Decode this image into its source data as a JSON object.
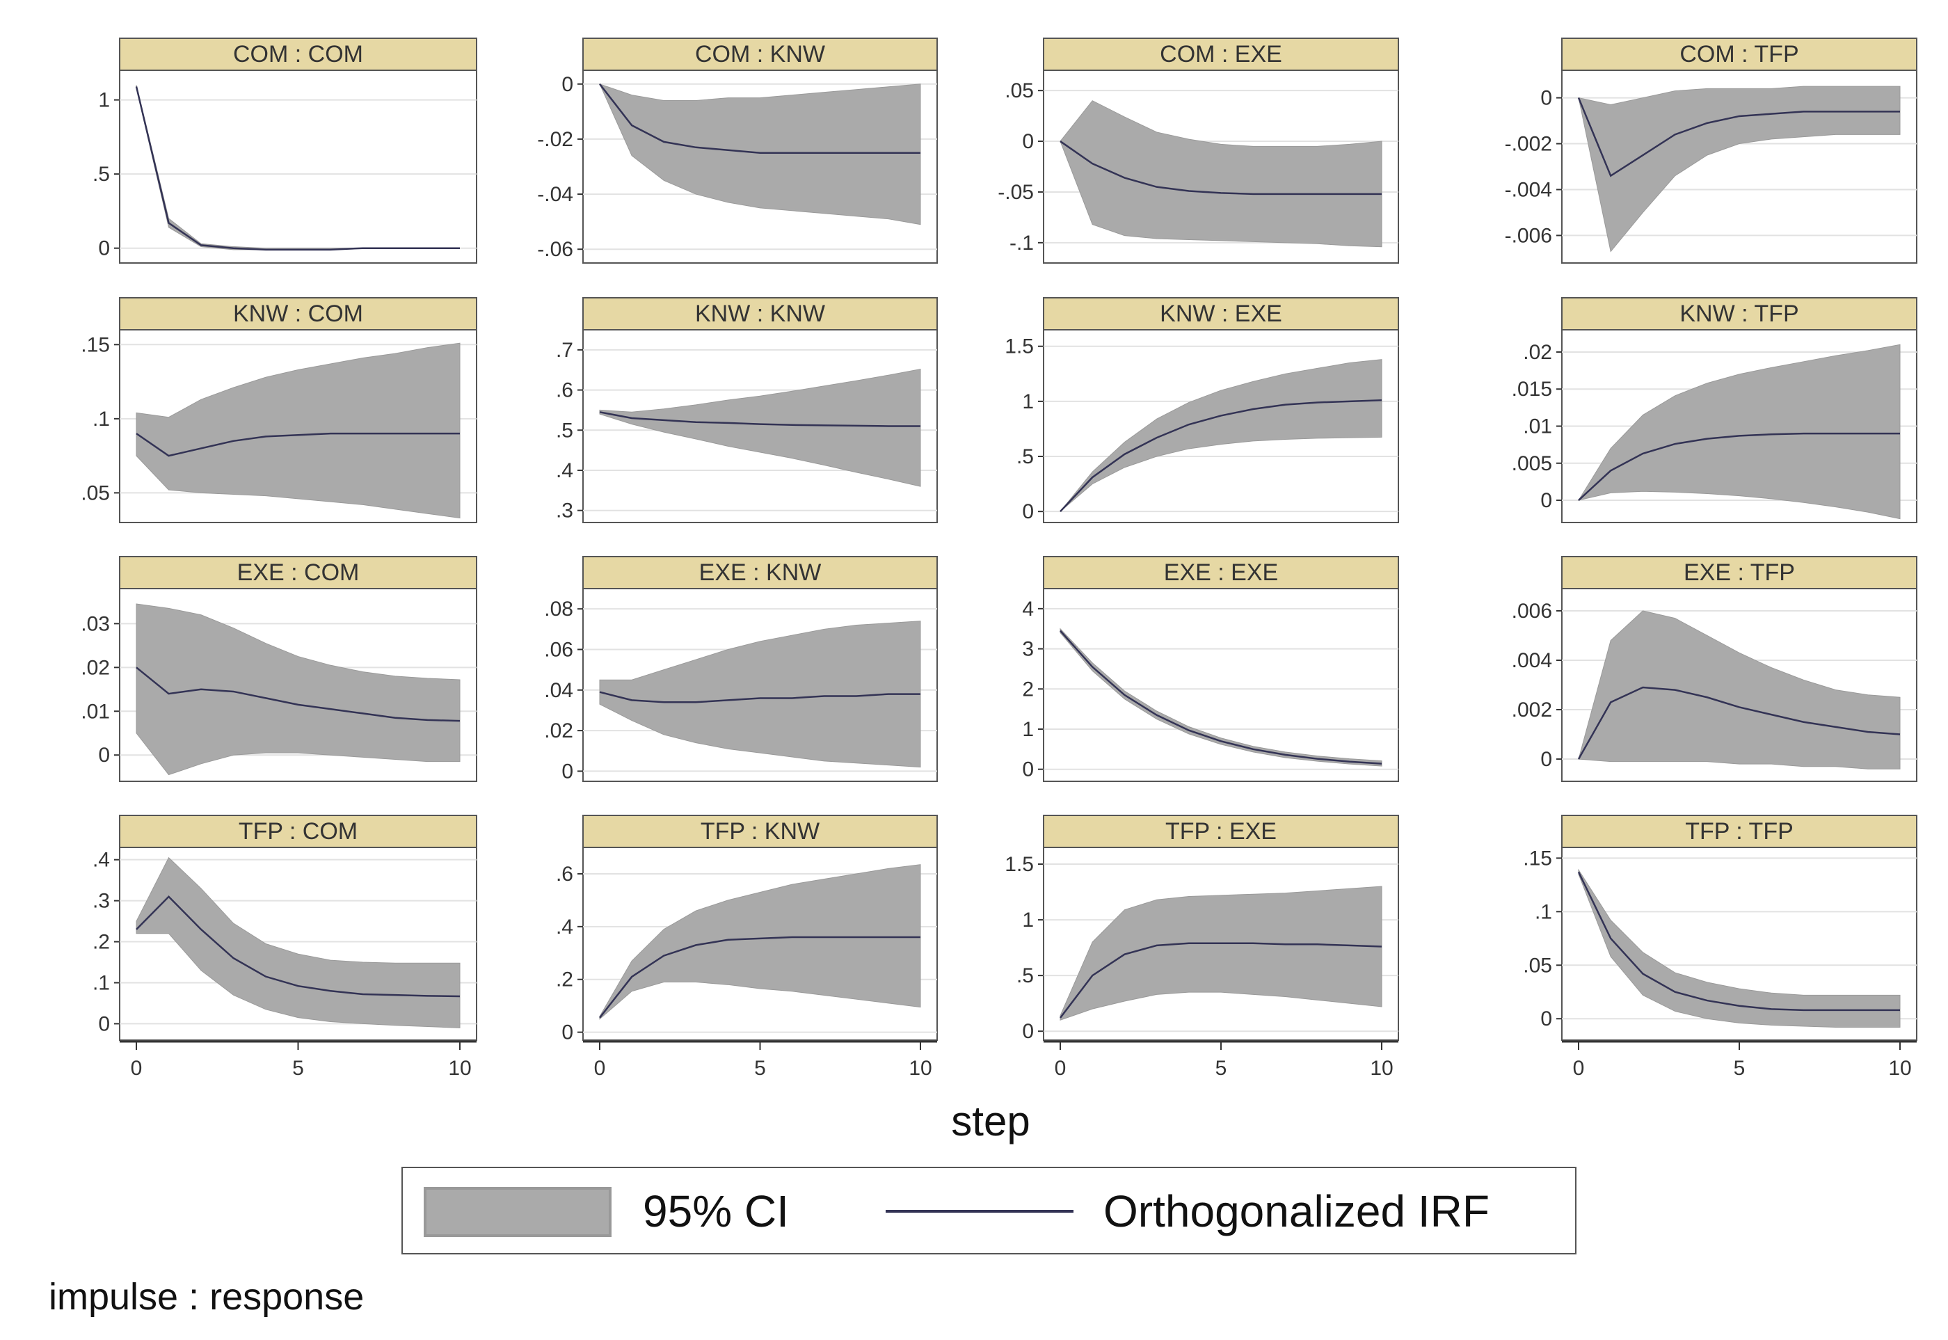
{
  "chart_data": {
    "type": "line",
    "title": "",
    "xlabel": "step",
    "note": "impulse : response",
    "legend": {
      "ci_label": "95% CI",
      "irf_label": "Orthogonalized IRF",
      "placement": "bottom"
    },
    "colors": {
      "strip": "#e6d8a4",
      "band": "#aaaaaa",
      "line": "#333355",
      "grid": "#e2e2e2",
      "axis": "#333333"
    },
    "x": [
      0,
      1,
      2,
      3,
      4,
      5,
      6,
      7,
      8,
      9,
      10
    ],
    "xlim": [
      0,
      10
    ],
    "xticks": [
      "0",
      "5",
      "10"
    ],
    "panels": [
      {
        "title": "COM : COM",
        "ylim": [
          -0.1,
          1.2
        ],
        "yticks": [
          0,
          0.5,
          1
        ],
        "ytick_labels": [
          "0",
          ".5",
          "1"
        ],
        "irf": [
          1.09,
          0.17,
          0.02,
          0.0,
          -0.01,
          -0.01,
          -0.01,
          0.0,
          0.0,
          0.0,
          0.0
        ],
        "lower": [
          1.08,
          0.14,
          0.01,
          -0.01,
          -0.01,
          -0.01,
          -0.01,
          0.0,
          0.0,
          0.0,
          0.0
        ],
        "upper": [
          1.1,
          0.2,
          0.03,
          0.01,
          0.0,
          0.0,
          0.0,
          0.0,
          0.0,
          0.0,
          0.0
        ]
      },
      {
        "title": "COM : KNW",
        "ylim": [
          -0.065,
          0.005
        ],
        "yticks": [
          0,
          -0.02,
          -0.04,
          -0.06
        ],
        "ytick_labels": [
          "0",
          "-.02",
          "-.04",
          "-.06"
        ],
        "irf": [
          0.0,
          -0.015,
          -0.021,
          -0.023,
          -0.024,
          -0.025,
          -0.025,
          -0.025,
          -0.025,
          -0.025,
          -0.025
        ],
        "lower": [
          0.0,
          -0.026,
          -0.035,
          -0.04,
          -0.043,
          -0.045,
          -0.046,
          -0.047,
          -0.048,
          -0.049,
          -0.051
        ],
        "upper": [
          0.0,
          -0.004,
          -0.006,
          -0.006,
          -0.005,
          -0.005,
          -0.004,
          -0.003,
          -0.002,
          -0.001,
          0.0
        ]
      },
      {
        "title": "COM : EXE",
        "ylim": [
          -0.12,
          0.07
        ],
        "yticks": [
          0.05,
          0,
          -0.05,
          -0.1
        ],
        "ytick_labels": [
          ".05",
          "0",
          "-.05",
          "-.1"
        ],
        "irf": [
          0.0,
          -0.022,
          -0.036,
          -0.045,
          -0.049,
          -0.051,
          -0.052,
          -0.052,
          -0.052,
          -0.052,
          -0.052
        ],
        "lower": [
          0.0,
          -0.082,
          -0.093,
          -0.096,
          -0.097,
          -0.098,
          -0.099,
          -0.1,
          -0.101,
          -0.103,
          -0.104
        ],
        "upper": [
          0.0,
          0.04,
          0.024,
          0.009,
          0.002,
          -0.003,
          -0.005,
          -0.005,
          -0.005,
          -0.003,
          0.0
        ]
      },
      {
        "title": "COM : TFP",
        "ylim": [
          -0.0072,
          0.0012
        ],
        "yticks": [
          0,
          -0.002,
          -0.004,
          -0.006
        ],
        "ytick_labels": [
          "0",
          "-.002",
          "-.004",
          "-.006"
        ],
        "irf": [
          0.0,
          -0.0034,
          -0.0025,
          -0.0016,
          -0.0011,
          -0.0008,
          -0.0007,
          -0.0006,
          -0.0006,
          -0.0006,
          -0.0006
        ],
        "lower": [
          0.0,
          -0.0067,
          -0.005,
          -0.0034,
          -0.0025,
          -0.002,
          -0.0018,
          -0.0017,
          -0.0016,
          -0.0016,
          -0.0016
        ],
        "upper": [
          0.0,
          -0.0003,
          0.0,
          0.0003,
          0.0004,
          0.0004,
          0.0004,
          0.0005,
          0.0005,
          0.0005,
          0.0005
        ]
      },
      {
        "title": "KNW : COM",
        "ylim": [
          0.03,
          0.16
        ],
        "yticks": [
          0.15,
          0.1,
          0.05
        ],
        "ytick_labels": [
          ".15",
          ".1",
          ".05"
        ],
        "irf": [
          0.09,
          0.075,
          0.08,
          0.085,
          0.088,
          0.089,
          0.09,
          0.09,
          0.09,
          0.09,
          0.09
        ],
        "lower": [
          0.075,
          0.052,
          0.05,
          0.049,
          0.048,
          0.046,
          0.044,
          0.042,
          0.039,
          0.036,
          0.033
        ],
        "upper": [
          0.104,
          0.101,
          0.113,
          0.121,
          0.128,
          0.133,
          0.137,
          0.141,
          0.144,
          0.148,
          0.151
        ]
      },
      {
        "title": "KNW : KNW",
        "ylim": [
          0.27,
          0.75
        ],
        "yticks": [
          0.7,
          0.6,
          0.5,
          0.4,
          0.3
        ],
        "ytick_labels": [
          ".7",
          ".6",
          ".5",
          ".4",
          ".3"
        ],
        "irf": [
          0.545,
          0.53,
          0.525,
          0.52,
          0.518,
          0.515,
          0.513,
          0.512,
          0.511,
          0.51,
          0.51
        ],
        "lower": [
          0.54,
          0.515,
          0.495,
          0.478,
          0.46,
          0.445,
          0.43,
          0.413,
          0.395,
          0.378,
          0.36
        ],
        "upper": [
          0.55,
          0.545,
          0.553,
          0.563,
          0.575,
          0.585,
          0.597,
          0.61,
          0.623,
          0.637,
          0.652
        ]
      },
      {
        "title": "KNW : EXE",
        "ylim": [
          -0.1,
          1.65
        ],
        "yticks": [
          1.5,
          1,
          0.5,
          0
        ],
        "ytick_labels": [
          "1.5",
          "1",
          ".5",
          "0"
        ],
        "irf": [
          0.0,
          0.31,
          0.52,
          0.67,
          0.79,
          0.87,
          0.93,
          0.97,
          0.99,
          1.0,
          1.01
        ],
        "lower": [
          0.0,
          0.25,
          0.4,
          0.5,
          0.57,
          0.61,
          0.64,
          0.655,
          0.665,
          0.67,
          0.675
        ],
        "upper": [
          0.0,
          0.36,
          0.63,
          0.84,
          0.99,
          1.1,
          1.18,
          1.25,
          1.3,
          1.35,
          1.38
        ]
      },
      {
        "title": "KNW : TFP",
        "ylim": [
          -0.003,
          0.023
        ],
        "yticks": [
          0.02,
          0.015,
          0.01,
          0.005,
          0
        ],
        "ytick_labels": [
          ".02",
          ".015",
          ".01",
          ".005",
          "0"
        ],
        "irf": [
          0.0,
          0.004,
          0.0063,
          0.0076,
          0.0083,
          0.0087,
          0.0089,
          0.009,
          0.009,
          0.009,
          0.009
        ],
        "lower": [
          0.0,
          0.001,
          0.0012,
          0.0011,
          0.0009,
          0.0006,
          0.0002,
          -0.0003,
          -0.0009,
          -0.0016,
          -0.0025
        ],
        "upper": [
          0.0,
          0.007,
          0.0115,
          0.0141,
          0.0158,
          0.017,
          0.0179,
          0.0187,
          0.0195,
          0.0202,
          0.021
        ]
      },
      {
        "title": "EXE : COM",
        "ylim": [
          -0.006,
          0.038
        ],
        "yticks": [
          0.03,
          0.02,
          0.01,
          0
        ],
        "ytick_labels": [
          ".03",
          ".02",
          ".01",
          "0"
        ],
        "irf": [
          0.02,
          0.014,
          0.015,
          0.0145,
          0.013,
          0.0115,
          0.0105,
          0.0095,
          0.0085,
          0.008,
          0.0078
        ],
        "lower": [
          0.005,
          -0.0045,
          -0.002,
          0.0,
          0.0005,
          0.0005,
          0.0,
          -0.0005,
          -0.001,
          -0.0015,
          -0.0015
        ],
        "upper": [
          0.0345,
          0.0335,
          0.032,
          0.029,
          0.0255,
          0.0225,
          0.0205,
          0.019,
          0.018,
          0.0175,
          0.0172
        ]
      },
      {
        "title": "EXE : KNW",
        "ylim": [
          -0.005,
          0.09
        ],
        "yticks": [
          0.08,
          0.06,
          0.04,
          0.02,
          0
        ],
        "ytick_labels": [
          ".08",
          ".06",
          ".04",
          ".02",
          "0"
        ],
        "irf": [
          0.039,
          0.035,
          0.034,
          0.034,
          0.035,
          0.036,
          0.036,
          0.037,
          0.037,
          0.038,
          0.038
        ],
        "lower": [
          0.033,
          0.025,
          0.018,
          0.014,
          0.011,
          0.009,
          0.007,
          0.005,
          0.004,
          0.003,
          0.002
        ],
        "upper": [
          0.045,
          0.045,
          0.05,
          0.055,
          0.06,
          0.064,
          0.067,
          0.07,
          0.072,
          0.073,
          0.074
        ]
      },
      {
        "title": "EXE : EXE",
        "ylim": [
          -0.3,
          4.5
        ],
        "yticks": [
          4,
          3,
          2,
          1,
          0
        ],
        "ytick_labels": [
          "4",
          "3",
          "2",
          "1",
          "0"
        ],
        "irf": [
          3.45,
          2.55,
          1.85,
          1.35,
          0.97,
          0.7,
          0.5,
          0.36,
          0.26,
          0.19,
          0.14
        ],
        "lower": [
          3.4,
          2.45,
          1.75,
          1.25,
          0.88,
          0.62,
          0.43,
          0.29,
          0.2,
          0.13,
          0.08
        ],
        "upper": [
          3.5,
          2.65,
          1.95,
          1.45,
          1.06,
          0.78,
          0.57,
          0.43,
          0.33,
          0.26,
          0.21
        ]
      },
      {
        "title": "EXE : TFP",
        "ylim": [
          -0.0009,
          0.0069
        ],
        "yticks": [
          0.006,
          0.004,
          0.002,
          0
        ],
        "ytick_labels": [
          ".006",
          ".004",
          ".002",
          "0"
        ],
        "irf": [
          0.0,
          0.0023,
          0.0029,
          0.0028,
          0.0025,
          0.0021,
          0.0018,
          0.0015,
          0.0013,
          0.0011,
          0.001
        ],
        "lower": [
          0.0,
          -0.0001,
          -0.0001,
          -0.0001,
          -0.0001,
          -0.0002,
          -0.0002,
          -0.0003,
          -0.0003,
          -0.0004,
          -0.0004
        ],
        "upper": [
          0.0,
          0.0048,
          0.006,
          0.0057,
          0.005,
          0.0043,
          0.0037,
          0.0032,
          0.0028,
          0.0026,
          0.0025
        ]
      },
      {
        "title": "TFP : COM",
        "ylim": [
          -0.04,
          0.43
        ],
        "yticks": [
          0.4,
          0.3,
          0.2,
          0.1,
          0
        ],
        "ytick_labels": [
          ".4",
          ".3",
          ".2",
          ".1",
          "0"
        ],
        "irf": [
          0.23,
          0.31,
          0.23,
          0.16,
          0.115,
          0.092,
          0.08,
          0.072,
          0.07,
          0.068,
          0.067
        ],
        "lower": [
          0.22,
          0.22,
          0.13,
          0.07,
          0.035,
          0.015,
          0.005,
          0.0,
          -0.004,
          -0.007,
          -0.01
        ],
        "upper": [
          0.25,
          0.405,
          0.33,
          0.245,
          0.195,
          0.17,
          0.155,
          0.15,
          0.148,
          0.148,
          0.148
        ]
      },
      {
        "title": "TFP : KNW",
        "ylim": [
          -0.03,
          0.7
        ],
        "yticks": [
          0.6,
          0.4,
          0.2,
          0
        ],
        "ytick_labels": [
          ".6",
          ".4",
          ".2",
          "0"
        ],
        "irf": [
          0.055,
          0.21,
          0.29,
          0.33,
          0.35,
          0.355,
          0.36,
          0.36,
          0.36,
          0.36,
          0.36
        ],
        "lower": [
          0.05,
          0.155,
          0.19,
          0.19,
          0.18,
          0.165,
          0.155,
          0.14,
          0.125,
          0.11,
          0.095
        ],
        "upper": [
          0.06,
          0.27,
          0.39,
          0.46,
          0.5,
          0.53,
          0.56,
          0.58,
          0.6,
          0.62,
          0.635
        ]
      },
      {
        "title": "TFP : EXE",
        "ylim": [
          -0.08,
          1.65
        ],
        "yticks": [
          1.5,
          1,
          0.5,
          0
        ],
        "ytick_labels": [
          "1.5",
          "1",
          ".5",
          "0"
        ],
        "irf": [
          0.12,
          0.5,
          0.69,
          0.77,
          0.79,
          0.79,
          0.79,
          0.78,
          0.78,
          0.77,
          0.76
        ],
        "lower": [
          0.1,
          0.2,
          0.27,
          0.33,
          0.35,
          0.35,
          0.33,
          0.31,
          0.28,
          0.25,
          0.22
        ],
        "upper": [
          0.14,
          0.8,
          1.09,
          1.18,
          1.21,
          1.22,
          1.23,
          1.24,
          1.26,
          1.28,
          1.3
        ]
      },
      {
        "title": "TFP : TFP",
        "ylim": [
          -0.02,
          0.16
        ],
        "yticks": [
          0.15,
          0.1,
          0.05,
          0
        ],
        "ytick_labels": [
          ".15",
          ".1",
          ".05",
          "0"
        ],
        "irf": [
          0.137,
          0.075,
          0.042,
          0.025,
          0.017,
          0.012,
          0.009,
          0.008,
          0.008,
          0.008,
          0.008
        ],
        "lower": [
          0.135,
          0.058,
          0.022,
          0.007,
          0.0,
          -0.004,
          -0.006,
          -0.007,
          -0.008,
          -0.008,
          -0.008
        ],
        "upper": [
          0.139,
          0.092,
          0.062,
          0.043,
          0.034,
          0.028,
          0.024,
          0.022,
          0.022,
          0.022,
          0.022
        ]
      }
    ]
  }
}
